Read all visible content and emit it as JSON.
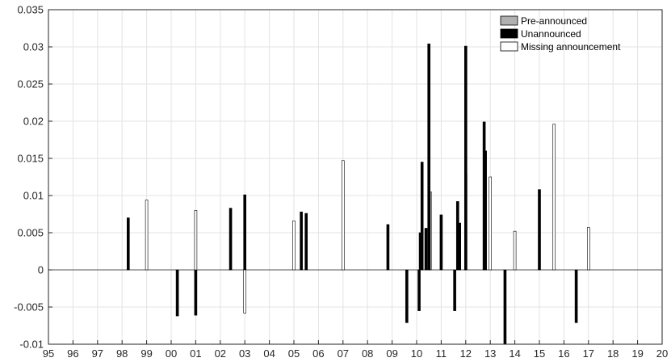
{
  "chart_data": {
    "type": "bar",
    "title": "",
    "xlabel": "",
    "ylabel": "",
    "xlim": [
      1995,
      2020
    ],
    "ylim": [
      -0.01,
      0.035
    ],
    "x_ticks": [
      1995,
      1996,
      1997,
      1998,
      1999,
      2000,
      2001,
      2002,
      2003,
      2004,
      2005,
      2006,
      2007,
      2008,
      2009,
      2010,
      2011,
      2012,
      2013,
      2014,
      2015,
      2016,
      2017,
      2018,
      2019,
      2020
    ],
    "x_tick_labels": [
      "95",
      "96",
      "97",
      "98",
      "99",
      "00",
      "01",
      "02",
      "03",
      "04",
      "05",
      "06",
      "07",
      "08",
      "09",
      "10",
      "11",
      "12",
      "13",
      "14",
      "15",
      "16",
      "17",
      "18",
      "19",
      "20"
    ],
    "y_ticks": [
      -0.01,
      -0.005,
      0,
      0.005,
      0.01,
      0.015,
      0.02,
      0.025,
      0.03,
      0.035
    ],
    "y_tick_labels": [
      "-0.01",
      "-0.005",
      "0",
      "0.005",
      "0.01",
      "0.015",
      "0.02",
      "0.025",
      "0.03",
      "0.035"
    ],
    "grid": true,
    "legend_position": "top-right",
    "series": [
      {
        "name": "Pre-announced",
        "color": "#b0b0b0",
        "points": [
          {
            "x": 2010.55,
            "y": 0.0105
          },
          {
            "x": 2012.0,
            "y": 0.0129
          }
        ]
      },
      {
        "name": "Unannounced",
        "color": "#000000",
        "points": [
          {
            "x": 1998.25,
            "y": 0.007
          },
          {
            "x": 2000.25,
            "y": -0.0062
          },
          {
            "x": 2001.0,
            "y": -0.0061
          },
          {
            "x": 2002.42,
            "y": 0.0083
          },
          {
            "x": 2003.0,
            "y": 0.0101
          },
          {
            "x": 2005.3,
            "y": 0.0078
          },
          {
            "x": 2005.5,
            "y": 0.0076
          },
          {
            "x": 2008.83,
            "y": 0.0061
          },
          {
            "x": 2009.6,
            "y": -0.0071
          },
          {
            "x": 2010.1,
            "y": -0.0055
          },
          {
            "x": 2010.15,
            "y": 0.005
          },
          {
            "x": 2010.22,
            "y": 0.0145
          },
          {
            "x": 2010.38,
            "y": 0.0056
          },
          {
            "x": 2010.5,
            "y": 0.0304
          },
          {
            "x": 2011.0,
            "y": 0.0074
          },
          {
            "x": 2011.55,
            "y": -0.0055
          },
          {
            "x": 2011.67,
            "y": 0.0092
          },
          {
            "x": 2011.75,
            "y": 0.0063
          },
          {
            "x": 2012.0,
            "y": 0.0301
          },
          {
            "x": 2012.75,
            "y": 0.0199
          },
          {
            "x": 2012.8,
            "y": 0.016
          },
          {
            "x": 2013.6,
            "y": -0.01
          },
          {
            "x": 2015.0,
            "y": 0.0108
          },
          {
            "x": 2016.5,
            "y": -0.0071
          }
        ]
      },
      {
        "name": "Missing announcement",
        "color": "#ffffff",
        "points": [
          {
            "x": 1999.0,
            "y": 0.0094
          },
          {
            "x": 2001.0,
            "y": 0.008
          },
          {
            "x": 2003.0,
            "y": -0.0058
          },
          {
            "x": 2005.0,
            "y": 0.0066
          },
          {
            "x": 2007.0,
            "y": 0.0147
          },
          {
            "x": 2013.0,
            "y": 0.0125
          },
          {
            "x": 2014.0,
            "y": 0.0052
          },
          {
            "x": 2015.6,
            "y": 0.0196
          },
          {
            "x": 2017.0,
            "y": 0.0057
          }
        ]
      }
    ]
  }
}
